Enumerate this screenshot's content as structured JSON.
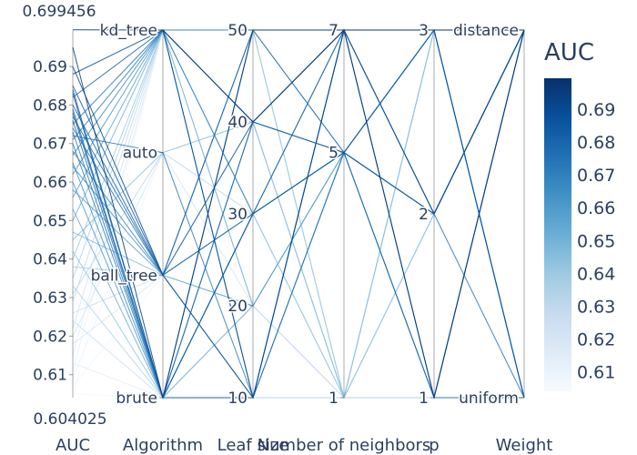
{
  "chart_data": {
    "type": "parallel_coordinates",
    "color_variable": "AUC",
    "colorscale": [
      "#f7fbff",
      "#deebf7",
      "#c6dbef",
      "#9ecae1",
      "#6baed6",
      "#4292c6",
      "#2171b5",
      "#08519c",
      "#08306b"
    ],
    "colorbar": {
      "title": "AUC",
      "range": [
        0.604025,
        0.699456
      ],
      "ticks": [
        "0.61",
        "0.62",
        "0.63",
        "0.64",
        "0.65",
        "0.66",
        "0.67",
        "0.68",
        "0.69"
      ]
    },
    "dimensions": [
      {
        "label": "AUC",
        "kind": "numeric",
        "range": [
          0.604025,
          0.699456
        ],
        "range_labels": {
          "min": "0.604025",
          "max": "0.699456"
        },
        "ticks": [
          "0.61",
          "0.62",
          "0.63",
          "0.64",
          "0.65",
          "0.66",
          "0.67",
          "0.68",
          "0.69"
        ]
      },
      {
        "label": "Algorithm",
        "kind": "categorical",
        "categories": [
          "brute",
          "ball_tree",
          "auto",
          "kd_tree"
        ]
      },
      {
        "label": "Leaf size",
        "kind": "numeric",
        "range": [
          10,
          50
        ],
        "ticks": [
          "10",
          "20",
          "30",
          "40",
          "50"
        ]
      },
      {
        "label": "Number of neighbors",
        "kind": "numeric",
        "range": [
          1,
          7
        ],
        "ticks": [
          "1",
          "5",
          "7"
        ]
      },
      {
        "label": "p",
        "kind": "numeric",
        "range": [
          1,
          3
        ],
        "ticks": [
          "1",
          "2",
          "3"
        ]
      },
      {
        "label": "Weight",
        "kind": "categorical",
        "categories": [
          "uniform",
          "distance"
        ]
      }
    ],
    "rows": [
      [
        0.6995,
        "kd_tree",
        40,
        7,
        3,
        "distance"
      ],
      [
        0.695,
        "brute",
        50,
        7,
        1,
        "distance"
      ],
      [
        0.69,
        "ball_tree",
        10,
        7,
        2,
        "distance"
      ],
      [
        0.688,
        "kd_tree",
        10,
        7,
        3,
        "uniform"
      ],
      [
        0.685,
        "ball_tree",
        40,
        7,
        1,
        "distance"
      ],
      [
        0.684,
        "brute",
        30,
        5,
        3,
        "distance"
      ],
      [
        0.683,
        "brute",
        10,
        7,
        2,
        "distance"
      ],
      [
        0.682,
        "kd_tree",
        40,
        5,
        2,
        "distance"
      ],
      [
        0.68,
        "ball_tree",
        50,
        7,
        3,
        "distance"
      ],
      [
        0.679,
        "brute",
        40,
        5,
        1,
        "distance"
      ],
      [
        0.678,
        "brute",
        30,
        7,
        3,
        "distance"
      ],
      [
        0.677,
        "ball_tree",
        30,
        7,
        1,
        "uniform"
      ],
      [
        0.676,
        "brute",
        50,
        5,
        2,
        "distance"
      ],
      [
        0.675,
        "kd_tree",
        10,
        5,
        3,
        "distance"
      ],
      [
        0.674,
        "ball_tree",
        50,
        7,
        3,
        "uniform"
      ],
      [
        0.673,
        "brute",
        30,
        5,
        2,
        "distance"
      ],
      [
        0.672,
        "auto",
        10,
        7,
        3,
        "distance"
      ],
      [
        0.671,
        "kd_tree",
        50,
        7,
        2,
        "uniform"
      ],
      [
        0.67,
        "brute",
        40,
        7,
        3,
        "uniform"
      ],
      [
        0.668,
        "ball_tree",
        30,
        5,
        3,
        "distance"
      ],
      [
        0.667,
        "kd_tree",
        30,
        5,
        1,
        "distance"
      ],
      [
        0.665,
        "brute",
        10,
        5,
        3,
        "uniform"
      ],
      [
        0.664,
        "ball_tree",
        10,
        5,
        2,
        "distance"
      ],
      [
        0.662,
        "kd_tree",
        40,
        5,
        3,
        "uniform"
      ],
      [
        0.66,
        "brute",
        50,
        5,
        1,
        "distance"
      ],
      [
        0.658,
        "ball_tree",
        20,
        5,
        2,
        "distance"
      ],
      [
        0.656,
        "kd_tree",
        30,
        5,
        2,
        "distance"
      ],
      [
        0.653,
        "brute",
        20,
        5,
        3,
        "uniform"
      ],
      [
        0.65,
        "kd_tree",
        20,
        5,
        3,
        "distance"
      ],
      [
        0.647,
        "ball_tree",
        30,
        5,
        1,
        "uniform"
      ],
      [
        0.645,
        "auto",
        40,
        1,
        3,
        "distance"
      ],
      [
        0.642,
        "brute",
        30,
        1,
        2,
        "distance"
      ],
      [
        0.64,
        "kd_tree",
        50,
        1,
        3,
        "uniform"
      ],
      [
        0.638,
        "ball_tree",
        40,
        1,
        2,
        "distance"
      ],
      [
        0.635,
        "kd_tree",
        10,
        1,
        1,
        "uniform"
      ],
      [
        0.633,
        "brute",
        50,
        1,
        3,
        "distance"
      ],
      [
        0.631,
        "auto",
        30,
        1,
        1,
        "uniform"
      ],
      [
        0.629,
        "kd_tree",
        20,
        1,
        2,
        "distance"
      ],
      [
        0.626,
        "ball_tree",
        50,
        1,
        1,
        "distance"
      ],
      [
        0.624,
        "brute",
        40,
        1,
        3,
        "uniform"
      ],
      [
        0.622,
        "kd_tree",
        30,
        1,
        2,
        "uniform"
      ],
      [
        0.62,
        "auto",
        20,
        1,
        1,
        "distance"
      ],
      [
        0.618,
        "ball_tree",
        10,
        1,
        3,
        "uniform"
      ],
      [
        0.615,
        "kd_tree",
        40,
        1,
        1,
        "distance"
      ],
      [
        0.613,
        "brute",
        20,
        1,
        2,
        "uniform"
      ],
      [
        0.611,
        "kd_tree",
        50,
        1,
        1,
        "uniform"
      ],
      [
        0.609,
        "auto",
        40,
        1,
        2,
        "uniform"
      ],
      [
        0.607,
        "ball_tree",
        20,
        1,
        3,
        "distance"
      ],
      [
        0.605,
        "brute",
        10,
        1,
        1,
        "distance"
      ],
      [
        0.604,
        "kd_tree",
        30,
        1,
        3,
        "uniform"
      ]
    ]
  }
}
